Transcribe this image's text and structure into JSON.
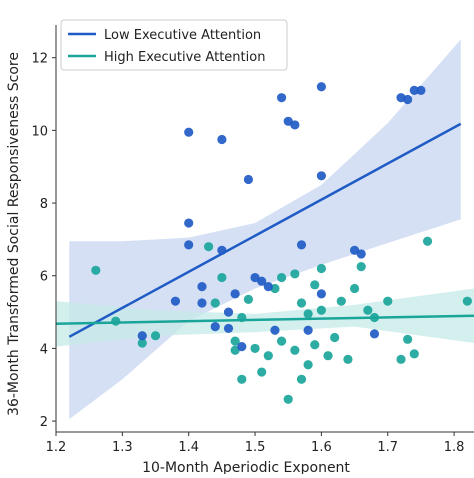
{
  "chart_data": {
    "type": "scatter",
    "title": "",
    "xlabel": "10-Month Aperiodic Exponent",
    "ylabel": "36-Month Transformed Social Responsiveness Score",
    "xlim": [
      1.2,
      1.83
    ],
    "ylim": [
      1.7,
      12.9
    ],
    "xticks": [
      1.2,
      1.3,
      1.4,
      1.5,
      1.6,
      1.7,
      1.8
    ],
    "yticks": [
      2,
      4,
      6,
      8,
      10,
      12
    ],
    "xtick_labels": [
      "1.2",
      "1.3",
      "1.4",
      "1.5",
      "1.6",
      "1.7",
      "1.8"
    ],
    "ytick_labels": [
      "2",
      "4",
      "6",
      "8",
      "10",
      "12"
    ],
    "grid": false,
    "legend_position": "top-left",
    "series": [
      {
        "name": "Low Executive Attention",
        "color": "#1f5bc4",
        "band_color": "#c7d6f2",
        "fit": {
          "x": [
            1.22,
            1.81
          ],
          "y": [
            4.32,
            10.18
          ]
        },
        "band_upper": {
          "x": [
            1.22,
            1.3,
            1.4,
            1.5,
            1.6,
            1.7,
            1.81
          ],
          "y": [
            6.95,
            6.95,
            7.05,
            7.45,
            8.5,
            10.2,
            12.5
          ]
        },
        "band_lower": {
          "x": [
            1.22,
            1.3,
            1.4,
            1.5,
            1.6,
            1.7,
            1.81
          ],
          "y": [
            2.05,
            3.15,
            4.75,
            5.65,
            6.3,
            6.9,
            7.55
          ]
        },
        "points": [
          {
            "x": 1.33,
            "y": 4.35
          },
          {
            "x": 1.38,
            "y": 5.3
          },
          {
            "x": 1.4,
            "y": 9.95
          },
          {
            "x": 1.4,
            "y": 7.45
          },
          {
            "x": 1.4,
            "y": 6.85
          },
          {
            "x": 1.42,
            "y": 5.7
          },
          {
            "x": 1.42,
            "y": 5.25
          },
          {
            "x": 1.44,
            "y": 4.6
          },
          {
            "x": 1.45,
            "y": 9.75
          },
          {
            "x": 1.45,
            "y": 6.7
          },
          {
            "x": 1.46,
            "y": 5.0
          },
          {
            "x": 1.46,
            "y": 4.55
          },
          {
            "x": 1.47,
            "y": 5.5
          },
          {
            "x": 1.48,
            "y": 4.05
          },
          {
            "x": 1.49,
            "y": 8.65
          },
          {
            "x": 1.5,
            "y": 5.95
          },
          {
            "x": 1.51,
            "y": 5.85
          },
          {
            "x": 1.52,
            "y": 5.7
          },
          {
            "x": 1.53,
            "y": 4.5
          },
          {
            "x": 1.54,
            "y": 10.9
          },
          {
            "x": 1.55,
            "y": 10.25
          },
          {
            "x": 1.56,
            "y": 10.15
          },
          {
            "x": 1.57,
            "y": 6.85
          },
          {
            "x": 1.58,
            "y": 4.5
          },
          {
            "x": 1.6,
            "y": 11.2
          },
          {
            "x": 1.6,
            "y": 8.75
          },
          {
            "x": 1.6,
            "y": 5.5
          },
          {
            "x": 1.65,
            "y": 6.7
          },
          {
            "x": 1.66,
            "y": 6.6
          },
          {
            "x": 1.68,
            "y": 4.4
          },
          {
            "x": 1.72,
            "y": 10.9
          },
          {
            "x": 1.73,
            "y": 10.85
          },
          {
            "x": 1.74,
            "y": 11.1
          },
          {
            "x": 1.75,
            "y": 11.1
          }
        ]
      },
      {
        "name": "High Executive Attention",
        "color": "#1aa59a",
        "band_color": "#c6ebe8",
        "fit": {
          "x": [
            1.2,
            1.83
          ],
          "y": [
            4.68,
            4.9
          ]
        },
        "band_upper": {
          "x": [
            1.2,
            1.35,
            1.5,
            1.65,
            1.83
          ],
          "y": [
            5.3,
            5.05,
            4.95,
            5.2,
            5.65
          ]
        },
        "band_lower": {
          "x": [
            1.2,
            1.35,
            1.5,
            1.65,
            1.83
          ],
          "y": [
            4.05,
            4.35,
            4.45,
            4.6,
            4.15
          ]
        },
        "points": [
          {
            "x": 1.26,
            "y": 6.15
          },
          {
            "x": 1.29,
            "y": 4.75
          },
          {
            "x": 1.33,
            "y": 4.15
          },
          {
            "x": 1.35,
            "y": 4.35
          },
          {
            "x": 1.43,
            "y": 6.8
          },
          {
            "x": 1.44,
            "y": 5.25
          },
          {
            "x": 1.45,
            "y": 5.95
          },
          {
            "x": 1.47,
            "y": 4.2
          },
          {
            "x": 1.47,
            "y": 3.95
          },
          {
            "x": 1.48,
            "y": 3.15
          },
          {
            "x": 1.48,
            "y": 4.85
          },
          {
            "x": 1.49,
            "y": 5.35
          },
          {
            "x": 1.5,
            "y": 4.0
          },
          {
            "x": 1.51,
            "y": 3.35
          },
          {
            "x": 1.52,
            "y": 3.8
          },
          {
            "x": 1.53,
            "y": 5.65
          },
          {
            "x": 1.54,
            "y": 5.95
          },
          {
            "x": 1.54,
            "y": 4.2
          },
          {
            "x": 1.55,
            "y": 2.6
          },
          {
            "x": 1.56,
            "y": 6.05
          },
          {
            "x": 1.56,
            "y": 3.95
          },
          {
            "x": 1.57,
            "y": 5.25
          },
          {
            "x": 1.57,
            "y": 3.15
          },
          {
            "x": 1.58,
            "y": 4.95
          },
          {
            "x": 1.58,
            "y": 3.55
          },
          {
            "x": 1.59,
            "y": 5.75
          },
          {
            "x": 1.59,
            "y": 4.1
          },
          {
            "x": 1.6,
            "y": 6.2
          },
          {
            "x": 1.6,
            "y": 5.05
          },
          {
            "x": 1.61,
            "y": 3.8
          },
          {
            "x": 1.62,
            "y": 4.3
          },
          {
            "x": 1.63,
            "y": 5.3
          },
          {
            "x": 1.64,
            "y": 3.7
          },
          {
            "x": 1.65,
            "y": 5.65
          },
          {
            "x": 1.66,
            "y": 6.25
          },
          {
            "x": 1.67,
            "y": 5.05
          },
          {
            "x": 1.68,
            "y": 4.85
          },
          {
            "x": 1.7,
            "y": 5.3
          },
          {
            "x": 1.72,
            "y": 3.7
          },
          {
            "x": 1.73,
            "y": 4.25
          },
          {
            "x": 1.74,
            "y": 3.85
          },
          {
            "x": 1.76,
            "y": 6.95
          },
          {
            "x": 1.82,
            "y": 5.3
          }
        ]
      }
    ]
  }
}
